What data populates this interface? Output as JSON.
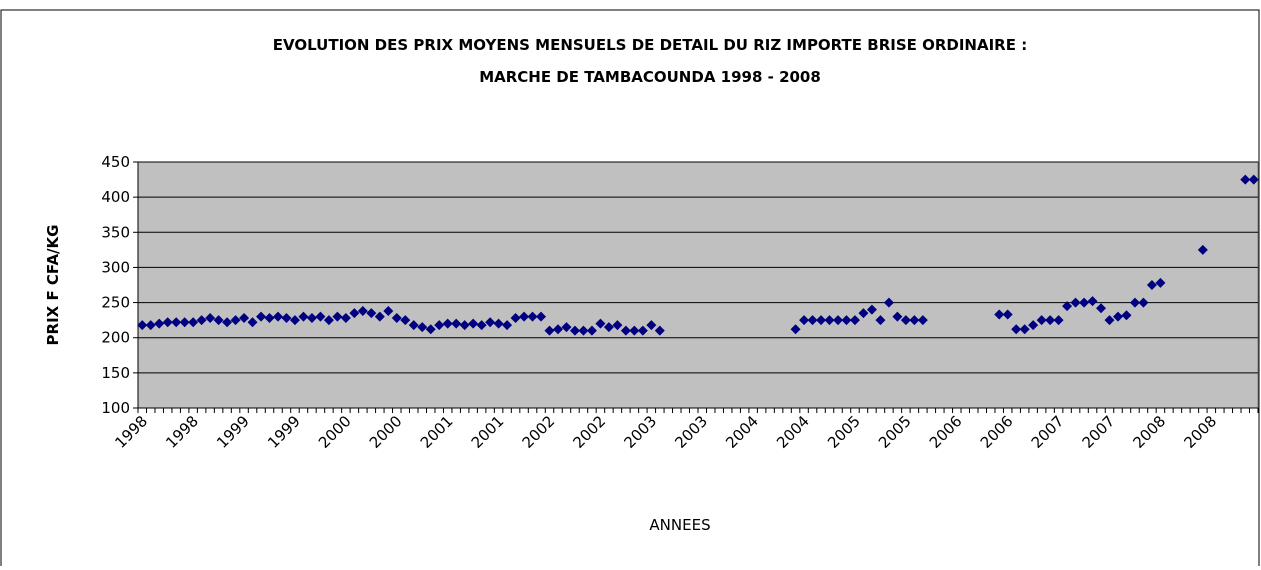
{
  "chart_data": {
    "type": "scatter",
    "title": "EVOLUTION DES PRIX MOYENS MENSUELS DE DETAIL DU RIZ IMPORTE BRISE ORDINAIRE :",
    "subtitle": "MARCHE DE TAMBACOUNDA 1998 - 2008",
    "x_label": "ANNEES",
    "y_label": "PRIX F CFA/KG",
    "categories": [
      "1998",
      null,
      null,
      null,
      null,
      null,
      "1998",
      null,
      null,
      null,
      null,
      null,
      "1999",
      null,
      null,
      null,
      null,
      null,
      "1999",
      null,
      null,
      null,
      null,
      null,
      "2000",
      null,
      null,
      null,
      null,
      null,
      "2000",
      null,
      null,
      null,
      null,
      null,
      "2001",
      null,
      null,
      null,
      null,
      null,
      "2001",
      null,
      null,
      null,
      null,
      null,
      "2002",
      null,
      null,
      null,
      null,
      null,
      "2002",
      null,
      null,
      null,
      null,
      null,
      "2003",
      null,
      null,
      null,
      null,
      null,
      "2003",
      null,
      null,
      null,
      null,
      null,
      "2004",
      null,
      null,
      null,
      null,
      null,
      "2004",
      null,
      null,
      null,
      null,
      null,
      "2005",
      null,
      null,
      null,
      null,
      null,
      "2005",
      null,
      null,
      null,
      null,
      null,
      "2006",
      null,
      null,
      null,
      null,
      null,
      "2006",
      null,
      null,
      null,
      null,
      null,
      "2007",
      null,
      null,
      null,
      null,
      null,
      "2007",
      null,
      null,
      null,
      null,
      null,
      "2008",
      null,
      null,
      null,
      null,
      null,
      "2008",
      null,
      null,
      null,
      null,
      null
    ],
    "series": [
      {
        "name": "PRIX",
        "color": "#000080",
        "values": [
          218,
          218,
          220,
          222,
          222,
          222,
          222,
          225,
          228,
          225,
          222,
          225,
          228,
          222,
          230,
          228,
          230,
          228,
          225,
          230,
          228,
          230,
          225,
          230,
          228,
          235,
          238,
          235,
          230,
          238,
          228,
          225,
          218,
          215,
          212,
          218,
          220,
          220,
          218,
          220,
          218,
          222,
          220,
          218,
          228,
          230,
          230,
          230,
          210,
          212,
          215,
          210,
          210,
          210,
          220,
          215,
          218,
          210,
          210,
          210,
          218,
          210,
          null,
          null,
          null,
          null,
          null,
          null,
          null,
          null,
          null,
          null,
          null,
          null,
          null,
          null,
          null,
          212,
          225,
          225,
          225,
          225,
          225,
          225,
          225,
          235,
          240,
          225,
          250,
          230,
          225,
          225,
          225,
          null,
          null,
          null,
          null,
          null,
          null,
          null,
          null,
          233,
          233,
          212,
          212,
          218,
          225,
          225,
          225,
          245,
          250,
          250,
          252,
          242,
          225,
          230,
          232,
          250,
          250,
          275,
          278,
          null,
          null,
          null,
          null,
          325,
          null,
          null,
          null,
          null,
          425,
          425
        ]
      }
    ],
    "ylim": [
      100,
      450
    ],
    "yticks": [
      100,
      150,
      200,
      250,
      300,
      350,
      400,
      450
    ],
    "grid": true,
    "plot_background": "#c0c0c0"
  }
}
